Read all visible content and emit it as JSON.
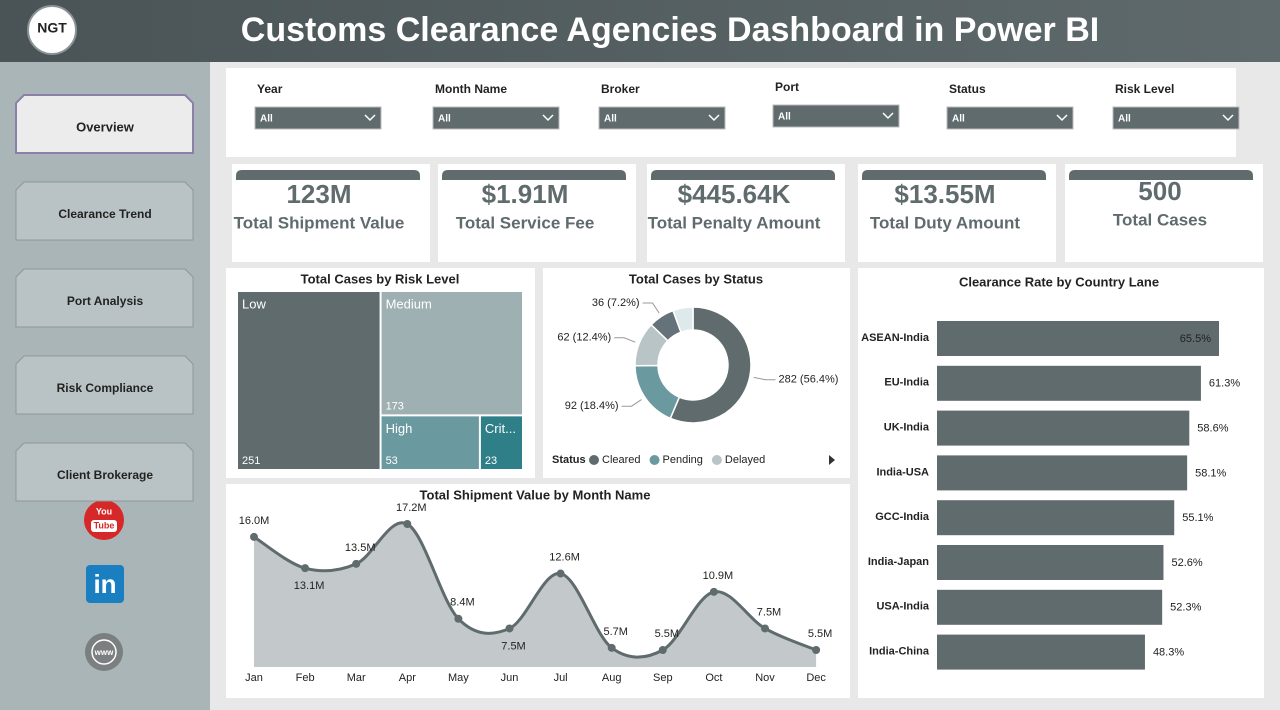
{
  "header": {
    "logo": "NGT",
    "title": "Customs Clearance Agencies Dashboard in Power BI"
  },
  "nav": [
    "Overview",
    "Clearance Trend",
    "Port Analysis",
    "Risk Compliance",
    "Client Brokerage"
  ],
  "social": {
    "youtube": [
      "You",
      "Tube"
    ],
    "linkedin": "in",
    "web": "www"
  },
  "filters": [
    {
      "label": "Year",
      "value": "All"
    },
    {
      "label": "Month Name",
      "value": "All"
    },
    {
      "label": "Broker",
      "value": "All"
    },
    {
      "label": "Port",
      "value": "All"
    },
    {
      "label": "Status",
      "value": "All"
    },
    {
      "label": "Risk Level",
      "value": "All"
    }
  ],
  "kpis": [
    {
      "value": "123M",
      "label": "Total Shipment Value"
    },
    {
      "value": "$1.91M",
      "label": "Total Service Fee"
    },
    {
      "value": "$445.64K",
      "label": "Total Penalty Amount"
    },
    {
      "value": "$13.55M",
      "label": "Total Duty Amount"
    },
    {
      "value": "500",
      "label": "Total Cases"
    }
  ],
  "chart_data": [
    {
      "type": "treemap",
      "title": "Total Cases by Risk Level",
      "categories": [
        "Low",
        "Medium",
        "High",
        "Crit..."
      ],
      "values": [
        251,
        173,
        53,
        23
      ],
      "colors": [
        "#5f6b6d",
        "#9fb0b3",
        "#6a9a9f",
        "#2f7f88"
      ]
    },
    {
      "type": "donut",
      "title": "Total Cases by Status",
      "legend_title": "Status",
      "categories": [
        "Cleared",
        "Pending",
        "Delayed",
        null,
        null
      ],
      "values": [
        282,
        92,
        62,
        36,
        28
      ],
      "value_labels": [
        "282 (56.4%)",
        "92 (18.4%)",
        "62 (12.4%)",
        "36 (7.2%)",
        null
      ],
      "colors": [
        "#5f6b6d",
        "#6a9a9f",
        "#b8c4c6",
        "#66727a",
        "#dde9eb"
      ]
    },
    {
      "type": "hbar",
      "title": "Clearance Rate by Country Lane",
      "categories": [
        "ASEAN-India",
        "EU-India",
        "UK-India",
        "India-USA",
        "GCC-India",
        "India-Japan",
        "USA-India",
        "India-China"
      ],
      "values": [
        65.5,
        61.3,
        58.6,
        58.1,
        55.1,
        52.6,
        52.3,
        48.3
      ],
      "value_labels": [
        "65.5%",
        "61.3%",
        "58.6%",
        "58.1%",
        "55.1%",
        "52.6%",
        "52.3%",
        "48.3%"
      ],
      "color": "#5f6b6d"
    },
    {
      "type": "area",
      "title": "Total Shipment Value by Month Name",
      "categories": [
        "Jan",
        "Feb",
        "Mar",
        "Apr",
        "May",
        "Jun",
        "Jul",
        "Aug",
        "Sep",
        "Oct",
        "Nov",
        "Dec"
      ],
      "values": [
        16.0,
        13.1,
        13.5,
        17.2,
        8.4,
        7.5,
        12.6,
        5.7,
        5.5,
        10.9,
        7.5,
        5.5
      ],
      "value_labels": [
        "16.0M",
        "13.1M",
        "13.5M",
        "17.2M",
        "8.4M",
        "7.5M",
        "12.6M",
        "5.7M",
        "5.5M",
        "10.9M",
        "7.5M",
        "5.5M"
      ],
      "color": "#5f6b6d",
      "fill": "#c3c9ca"
    }
  ]
}
